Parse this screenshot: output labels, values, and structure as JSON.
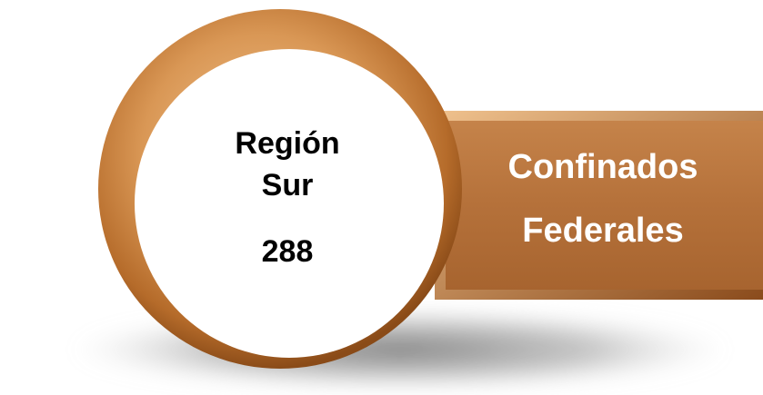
{
  "circle": {
    "lines": [
      "Región",
      "Sur"
    ],
    "value": "288"
  },
  "box": {
    "lines": [
      "Confinados",
      "Federales"
    ]
  }
}
